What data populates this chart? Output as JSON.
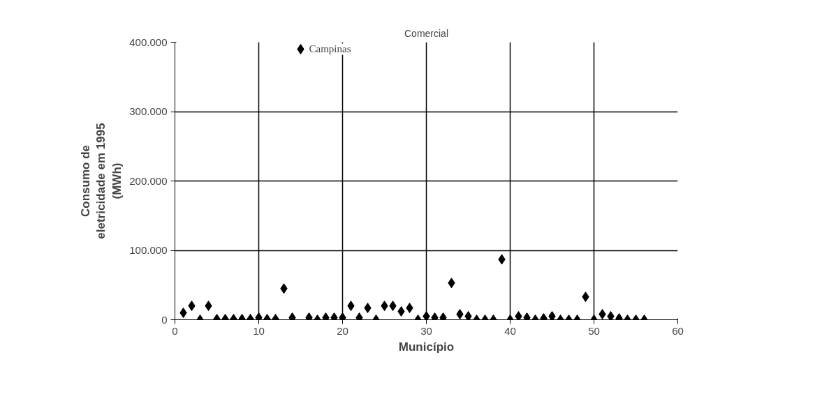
{
  "chart_data": {
    "type": "scatter",
    "title": "Comercial",
    "xlabel": "Município",
    "ylabel": "Consumo de\neletricidade em 1995\n(MWh)",
    "x": [
      1,
      2,
      3,
      4,
      5,
      6,
      7,
      8,
      9,
      10,
      11,
      12,
      13,
      14,
      15,
      16,
      17,
      18,
      19,
      20,
      21,
      22,
      23,
      24,
      25,
      26,
      27,
      28,
      29,
      30,
      31,
      32,
      33,
      34,
      35,
      36,
      37,
      38,
      39,
      40,
      41,
      42,
      43,
      44,
      45,
      46,
      47,
      48,
      49,
      50,
      51,
      52,
      53,
      54,
      55,
      56
    ],
    "series": [
      {
        "color": "#000000",
        "values": [
          10000,
          20000,
          0,
          20000,
          1000,
          1000,
          1000,
          1000,
          1000,
          3000,
          1000,
          1000,
          45000,
          3000,
          390000,
          3000,
          0,
          3000,
          3000,
          3000,
          20000,
          3000,
          17000,
          0,
          20000,
          20000,
          12000,
          17000,
          0,
          5000,
          3000,
          3000,
          53000,
          8000,
          5000,
          0,
          0,
          0,
          87000,
          0,
          5000,
          3000,
          0,
          2000,
          5000,
          0,
          0,
          0,
          33000,
          0,
          8000,
          5000,
          2000,
          0,
          0,
          0
        ]
      }
    ],
    "marker": "diamond",
    "xlim": [
      0,
      60
    ],
    "ylim": [
      0,
      400000
    ],
    "xticks": [
      0,
      10,
      20,
      30,
      40,
      50,
      60
    ],
    "yticks": [
      {
        "value": 0,
        "label": "0"
      },
      {
        "value": 100000,
        "label": "100.000"
      },
      {
        "value": 200000,
        "label": "200.000"
      },
      {
        "value": 300000,
        "label": "300.000"
      },
      {
        "value": 400000,
        "label": "400.000"
      }
    ],
    "grid": true,
    "annotations": [
      {
        "text": "Campinas",
        "x": 15,
        "y": 390000
      }
    ]
  }
}
